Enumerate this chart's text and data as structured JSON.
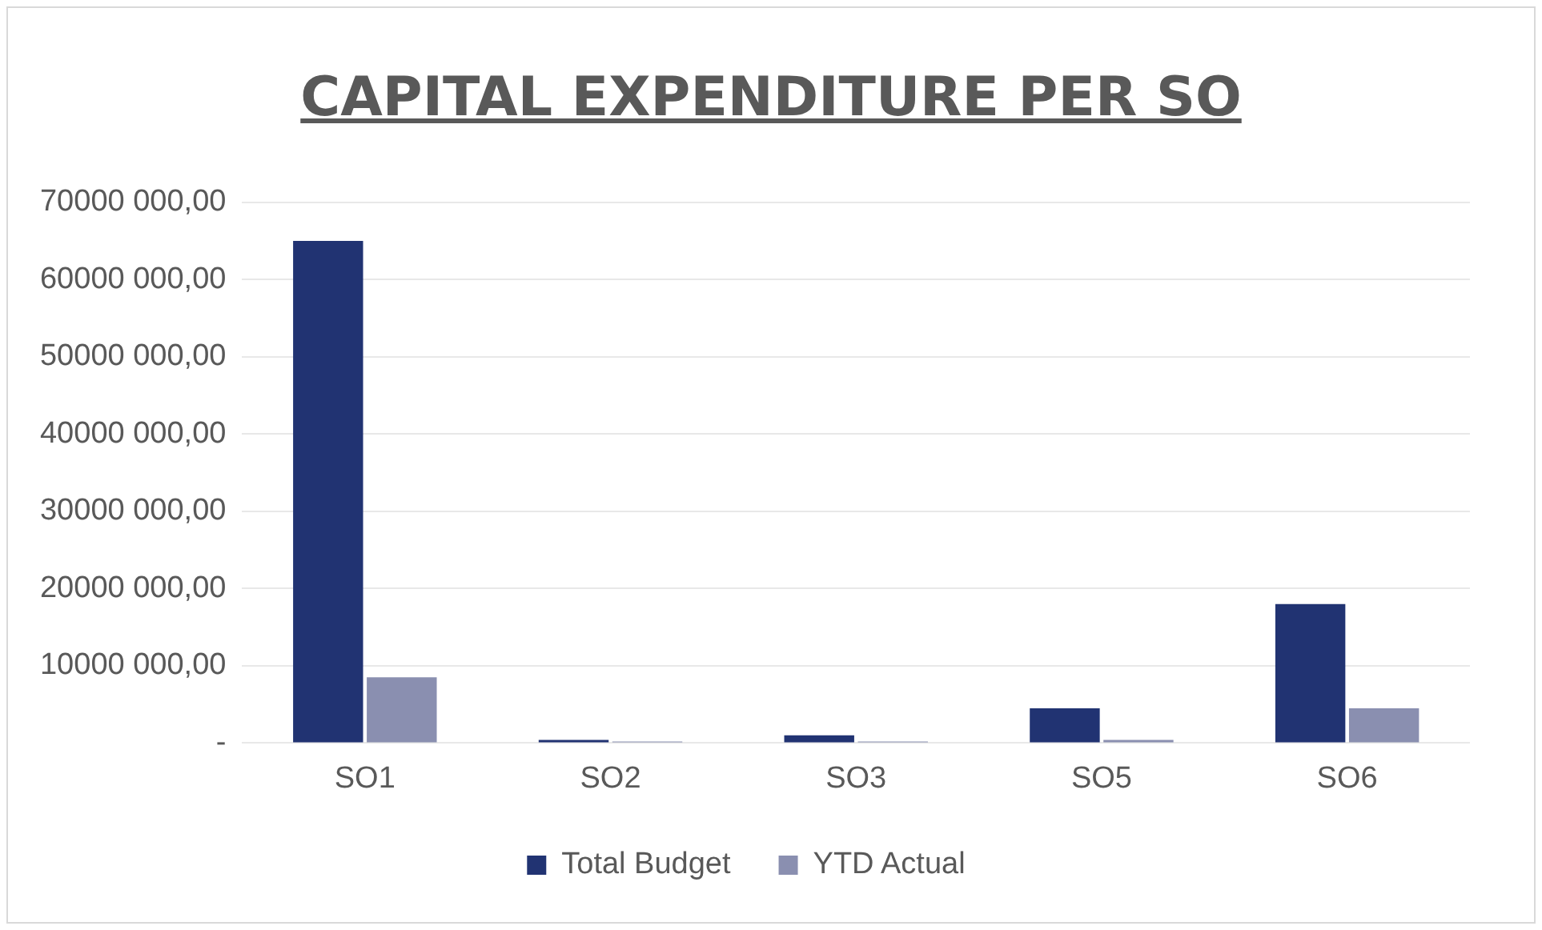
{
  "chart_data": {
    "type": "bar",
    "title": "CAPITAL EXPENDITURE PER SO",
    "categories": [
      "SO1",
      "SO2",
      "SO3",
      "SO5",
      "SO6"
    ],
    "series": [
      {
        "name": "Total Budget",
        "color": "#213372",
        "values": [
          65000000,
          400000,
          1000000,
          4500000,
          18000000
        ]
      },
      {
        "name": "YTD Actual",
        "color": "#8a8fb0",
        "values": [
          8500000,
          200000,
          200000,
          400000,
          4500000
        ]
      }
    ],
    "ylim": [
      0,
      70000000
    ],
    "yticks": [
      {
        "value": 0,
        "label": "-"
      },
      {
        "value": 10000000,
        "label": "10000 000,00"
      },
      {
        "value": 20000000,
        "label": "20000 000,00"
      },
      {
        "value": 30000000,
        "label": "30000 000,00"
      },
      {
        "value": 40000000,
        "label": "40000 000,00"
      },
      {
        "value": 50000000,
        "label": "50000 000,00"
      },
      {
        "value": 60000000,
        "label": "60000 000,00"
      },
      {
        "value": 70000000,
        "label": "70000 000,00"
      }
    ],
    "grid": "y",
    "legend": "bottom"
  }
}
